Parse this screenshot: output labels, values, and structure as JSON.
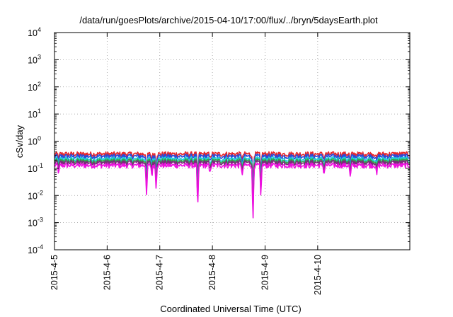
{
  "chart_data": {
    "type": "line",
    "title": "/data/run/goesPlots/archive/2015-04-10/17:00/flux/../bryn/5daysEarth.plot",
    "xlabel": "Coordinated Universal Time (UTC)",
    "ylabel": "cSv/day",
    "y_scale": "log",
    "ylim_exp": [
      -4,
      4
    ],
    "y_ticks": [
      {
        "base": "10",
        "exp": "4"
      },
      {
        "base": "10",
        "exp": "3"
      },
      {
        "base": "10",
        "exp": "2"
      },
      {
        "base": "10",
        "exp": "1"
      },
      {
        "base": "10",
        "exp": "0"
      },
      {
        "base": "10",
        "exp": "-1"
      },
      {
        "base": "10",
        "exp": "-2"
      },
      {
        "base": "10",
        "exp": "-3"
      },
      {
        "base": "10",
        "exp": "-4"
      }
    ],
    "x_ticks": [
      "2015-4-5",
      "2015-4-6",
      "2015-4-7",
      "2015-4-8",
      "2015-4-9",
      "2015-4-10"
    ],
    "x_range_days": [
      0,
      6.75
    ],
    "grid": true,
    "grid_style": "dotted",
    "legend": "none",
    "series": [
      {
        "color": "#e8262a",
        "base": 0.34
      },
      {
        "color": "#2b4bd8",
        "base": 0.28
      },
      {
        "color": "#1fd0e0",
        "base": 0.22
      },
      {
        "color": "#30a848",
        "base": 0.19
      },
      {
        "color": "#7a2a7a",
        "base": 0.165
      },
      {
        "color": "#ee10e0",
        "base": 0.13
      }
    ],
    "dips": [
      {
        "t": 0.08,
        "min": 0.06
      },
      {
        "t": 1.75,
        "min": 0.008
      },
      {
        "t": 1.85,
        "min": 0.05
      },
      {
        "t": 1.93,
        "min": 0.02
      },
      {
        "t": 2.72,
        "min": 0.0025
      },
      {
        "t": 2.95,
        "min": 0.06
      },
      {
        "t": 3.57,
        "min": 0.05
      },
      {
        "t": 3.77,
        "min": 0.0008
      },
      {
        "t": 3.92,
        "min": 0.007
      },
      {
        "t": 5.12,
        "min": 0.06
      },
      {
        "t": 5.62,
        "min": 0.04
      },
      {
        "t": 6.12,
        "min": 0.05
      }
    ]
  }
}
